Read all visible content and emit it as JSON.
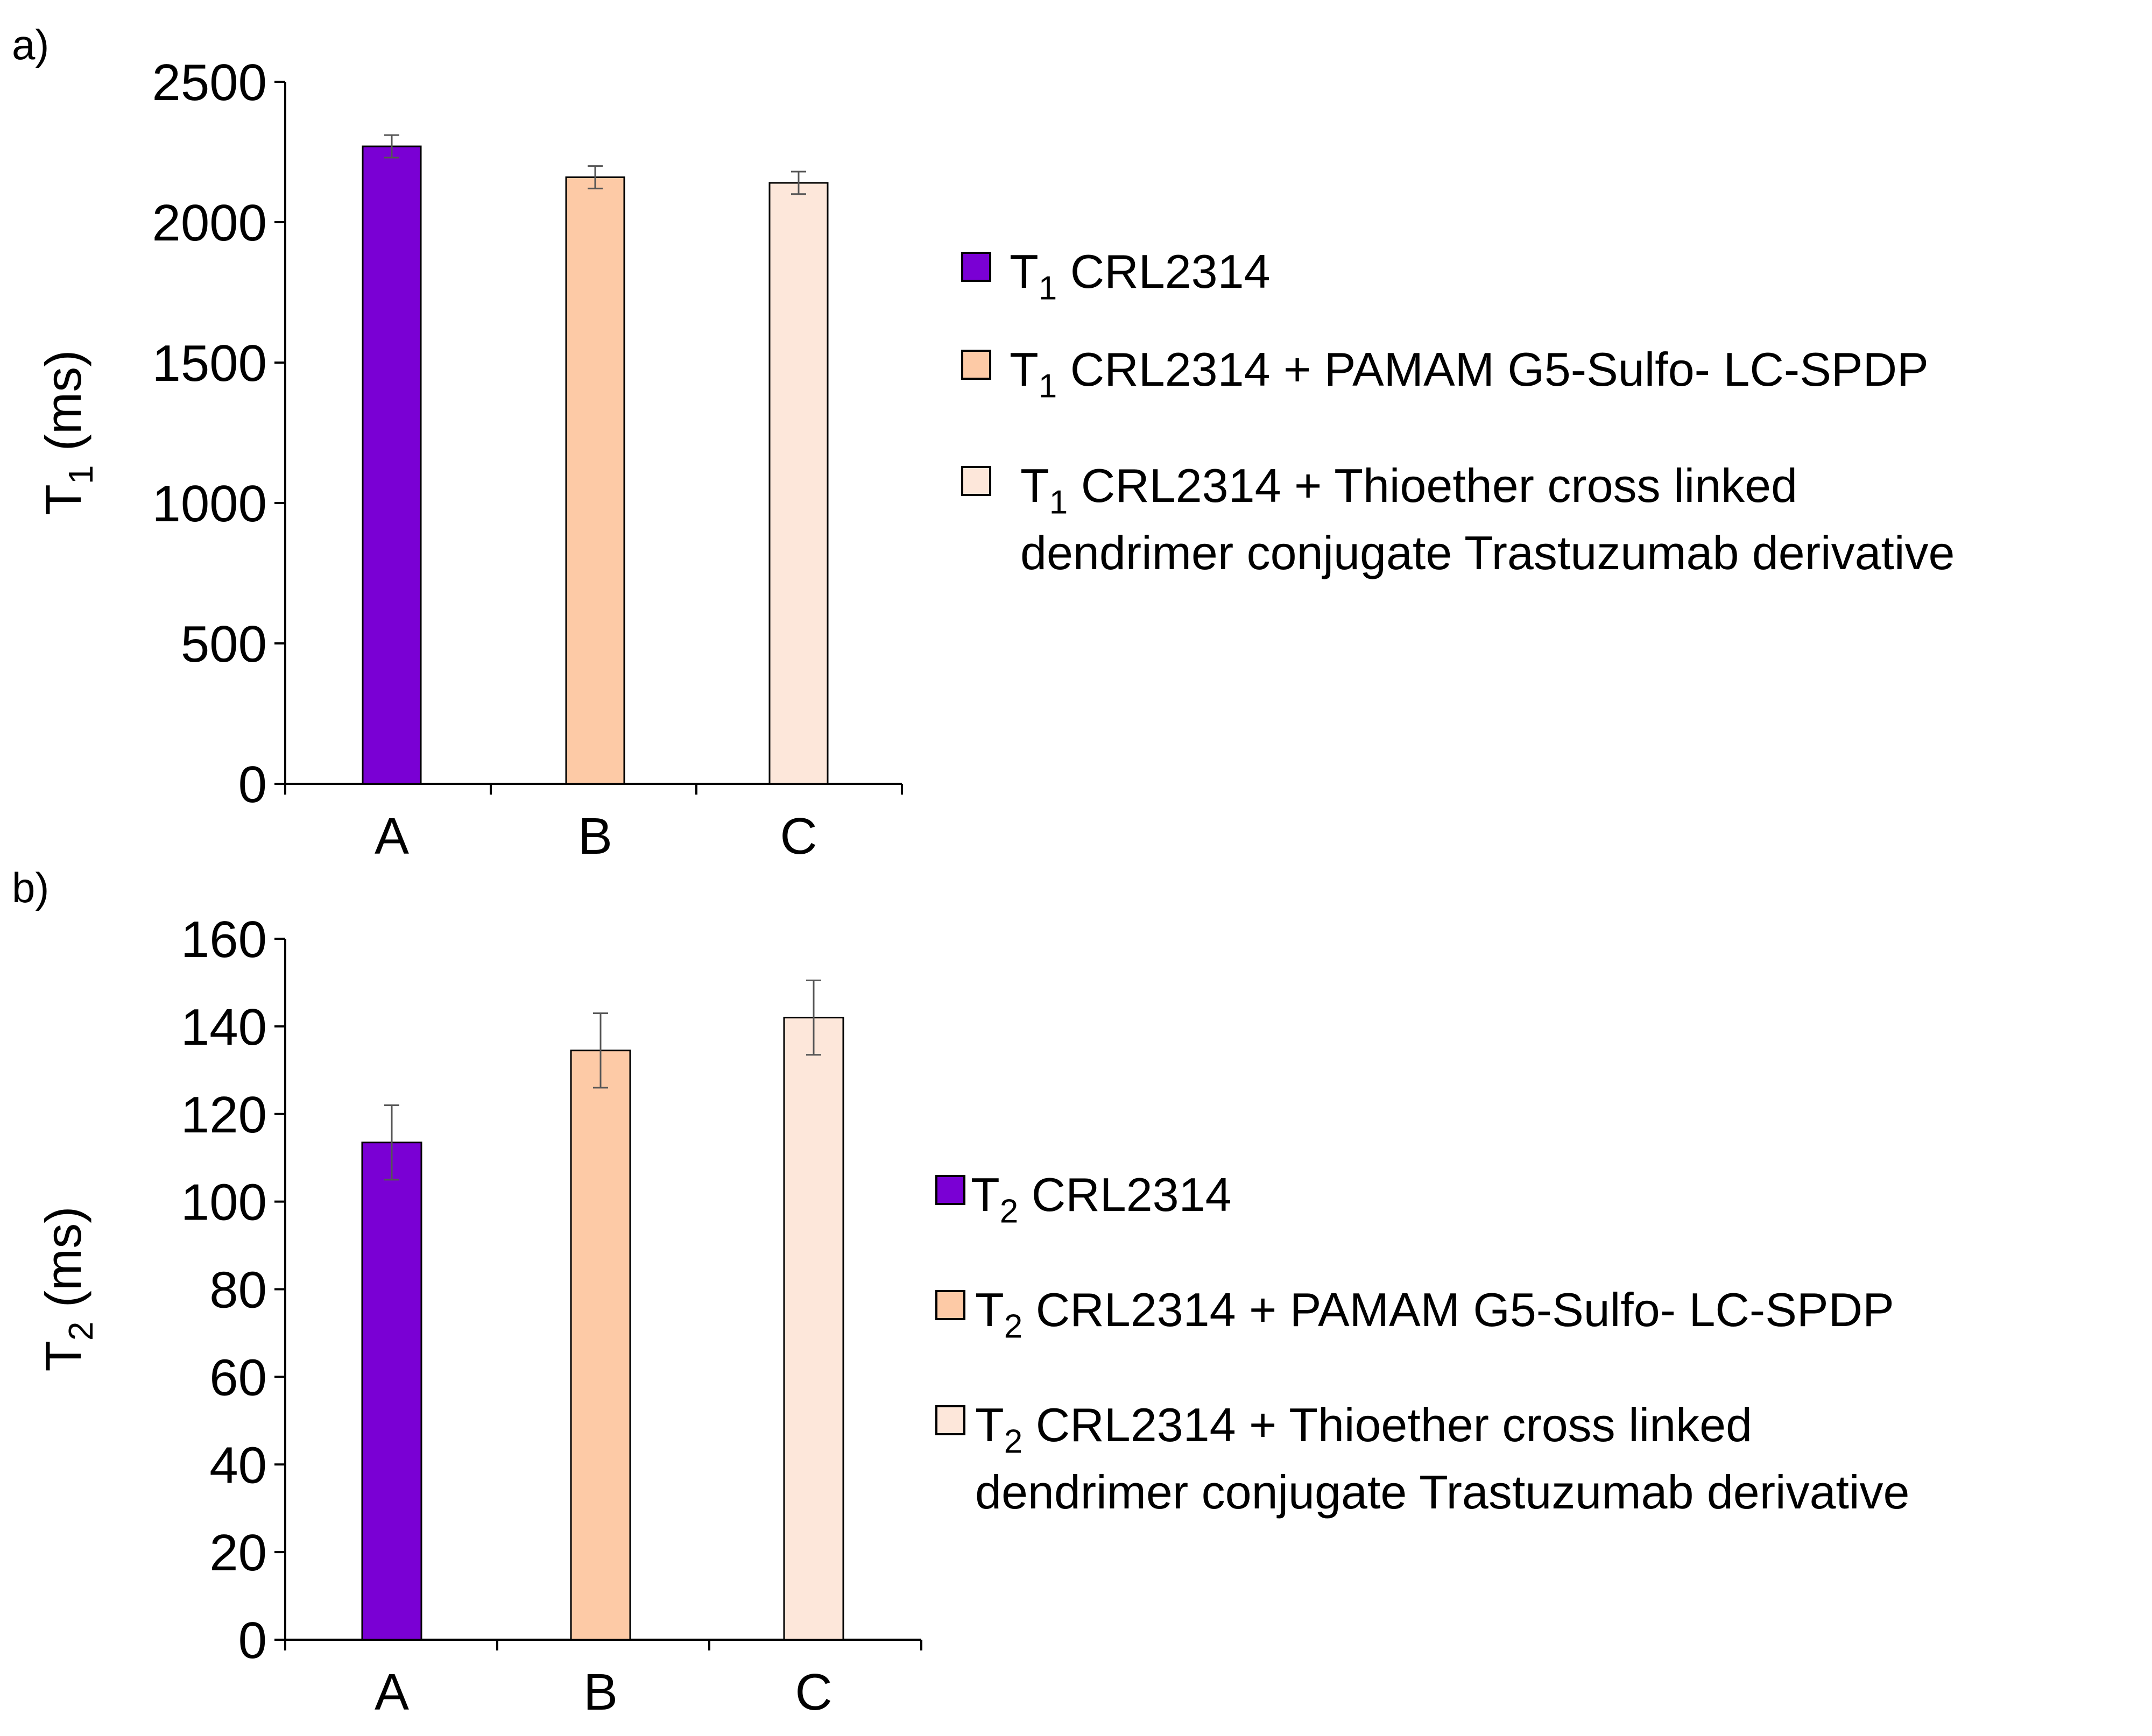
{
  "charts": {
    "a": {
      "panel_label": "a)",
      "ylabel_main": "T",
      "ylabel_sub": "1",
      "ylabel_unit": " (ms)",
      "legend": [
        {
          "sym": "T",
          "sub": "1",
          "text": " CRL2314",
          "cont": ""
        },
        {
          "sym": "T",
          "sub": "1",
          "text": " CRL2314 + PAMAM G5-Sulfo- LC-SPDP",
          "cont": ""
        },
        {
          "sym": "T",
          "sub": "1",
          "text": " CRL2314 + Thioether cross linked",
          "cont": "dendrimer conjugate Trastuzumab derivative"
        }
      ]
    },
    "b": {
      "panel_label": "b)",
      "ylabel_main": "T",
      "ylabel_sub": "2",
      "ylabel_unit": " (ms)",
      "legend": [
        {
          "sym": "T",
          "sub": "2",
          "text": "  CRL2314",
          "cont": ""
        },
        {
          "sym": "T",
          "sub": "2",
          "text": " CRL2314 + PAMAM G5-Sulfo- LC-SPDP",
          "cont": ""
        },
        {
          "sym": "T",
          "sub": "2",
          "text": " CRL2314 + Thioether cross linked",
          "cont": "dendrimer conjugate Trastuzumab derivative"
        }
      ]
    }
  },
  "chart_data": [
    {
      "type": "bar",
      "panel": "a)",
      "title": "",
      "xlabel": "",
      "ylabel": "T1 (ms)",
      "categories": [
        "A",
        "B",
        "C"
      ],
      "values": [
        2270,
        2160,
        2140
      ],
      "errors": [
        40,
        40,
        40
      ],
      "colors": [
        "#7a00d4",
        "#fdcaa6",
        "#fde7da"
      ],
      "series_names": [
        "T1 CRL2314",
        "T1 CRL2314 + PAMAM G5-Sulfo- LC-SPDP",
        "T1 CRL2314 + Thioether cross linked dendrimer conjugate Trastuzumab derivative"
      ],
      "ylim": [
        0,
        2500
      ],
      "yticks": [
        0,
        500,
        1000,
        1500,
        2000,
        2500
      ],
      "grid": false,
      "legend_position": "right"
    },
    {
      "type": "bar",
      "panel": "b)",
      "title": "",
      "xlabel": "",
      "ylabel": "T2 (ms)",
      "categories": [
        "A",
        "B",
        "C"
      ],
      "values": [
        113.5,
        134.5,
        142
      ],
      "errors": [
        8.5,
        8.5,
        8.5
      ],
      "colors": [
        "#7a00d4",
        "#fdcaa6",
        "#fde7da"
      ],
      "series_names": [
        "T2 CRL2314",
        "T2 CRL2314 + PAMAM G5-Sulfo- LC-SPDP",
        "T2 CRL2314 + Thioether cross linked dendrimer conjugate Trastuzumab derivative"
      ],
      "ylim": [
        0,
        160
      ],
      "yticks": [
        0,
        20,
        40,
        60,
        80,
        100,
        120,
        140,
        160
      ],
      "grid": false,
      "legend_position": "right"
    }
  ]
}
